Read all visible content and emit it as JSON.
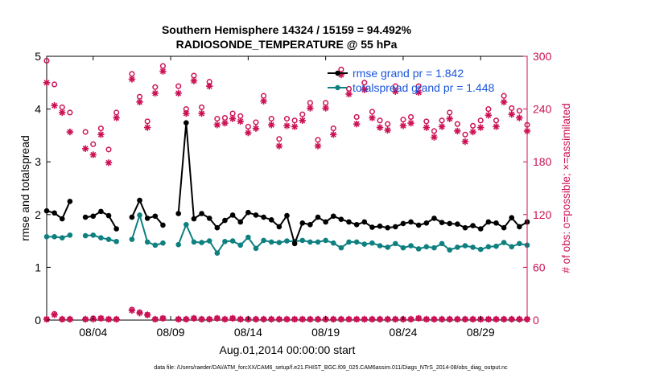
{
  "chart_data": {
    "type": "line",
    "title_line1": "Southern Hemisphere 14324 / 15159 = 94.492%",
    "title_line2": "RADIOSONDE_TEMPERATURE @ 55 hPa",
    "xlabel": "Aug.01,2014 00:00:00 start",
    "ylabel_left": "rmse and totalspread",
    "ylabel_right": "# of obs: o=possible; ×=assimilated",
    "footer": "data file: /Users/raeder/DAI/ATM_forcXX/CAM6_setup/f.e21.FHIST_BGC.f09_025.CAM6assim.011/Diags_NTrS_2014-08/obs_diag_output.nc",
    "x_tick_labels": [
      "08/04",
      "08/09",
      "08/14",
      "08/19",
      "08/24",
      "08/29"
    ],
    "x_tick_days": [
      4,
      9,
      14,
      19,
      24,
      29
    ],
    "xlim": [
      1,
      32
    ],
    "ylim_left": [
      0,
      5
    ],
    "y_ticks_left": [
      "0",
      "1",
      "2",
      "3",
      "4",
      "5"
    ],
    "ylim_right": [
      0,
      300
    ],
    "y_ticks_right": [
      "0",
      "60",
      "120",
      "180",
      "240",
      "300"
    ],
    "legend": {
      "rmse_label": "rmse grand pr = 1.842",
      "spread_label": "totalspread grand pr = 1.448"
    },
    "colors": {
      "rmse": "#000000",
      "spread": "#0e8080",
      "obs": "#cc1155",
      "legend_text": "#1a55dd"
    },
    "x": [
      1.0,
      1.5,
      2.0,
      2.5,
      3.0,
      3.5,
      4.0,
      4.5,
      5.0,
      5.5,
      6.0,
      6.5,
      7.0,
      7.5,
      8.0,
      8.5,
      9.0,
      9.5,
      10.0,
      10.5,
      11.0,
      11.5,
      12.0,
      12.5,
      13.0,
      13.5,
      14.0,
      14.5,
      15.0,
      15.5,
      16.0,
      16.5,
      17.0,
      17.5,
      18.0,
      18.5,
      19.0,
      19.5,
      20.0,
      20.5,
      21.0,
      21.5,
      22.0,
      22.5,
      23.0,
      23.5,
      24.0,
      24.5,
      25.0,
      25.5,
      26.0,
      26.5,
      27.0,
      27.5,
      28.0,
      28.5,
      29.0,
      29.5,
      30.0,
      30.5,
      31.0,
      31.5,
      32.0
    ],
    "rmse": [
      2.07,
      2.03,
      1.92,
      2.25,
      null,
      1.95,
      1.97,
      2.06,
      1.98,
      1.73,
      null,
      1.95,
      2.27,
      1.93,
      1.97,
      1.8,
      null,
      2.02,
      3.74,
      1.92,
      2.02,
      1.93,
      1.75,
      1.89,
      1.99,
      1.86,
      2.04,
      1.99,
      1.95,
      1.9,
      1.77,
      1.98,
      1.45,
      1.84,
      1.81,
      1.95,
      1.86,
      1.97,
      1.91,
      1.86,
      1.81,
      1.86,
      1.76,
      1.78,
      1.75,
      1.77,
      1.83,
      1.86,
      1.8,
      1.84,
      1.93,
      1.85,
      1.83,
      1.82,
      1.75,
      1.79,
      1.73,
      1.86,
      1.84,
      1.75,
      1.94,
      1.77,
      1.86
    ],
    "spread": [
      1.58,
      1.58,
      1.56,
      1.61,
      null,
      1.6,
      1.61,
      1.56,
      1.53,
      1.49,
      null,
      1.53,
      1.99,
      1.48,
      1.42,
      1.46,
      null,
      1.43,
      1.81,
      1.48,
      1.47,
      1.5,
      1.27,
      1.49,
      1.5,
      1.42,
      1.57,
      1.36,
      1.51,
      1.48,
      1.47,
      1.5,
      1.49,
      1.51,
      1.48,
      1.48,
      1.51,
      1.46,
      1.37,
      1.48,
      1.48,
      1.44,
      1.46,
      1.41,
      1.38,
      1.45,
      1.37,
      1.41,
      1.35,
      1.39,
      1.37,
      1.45,
      1.33,
      1.38,
      1.41,
      1.38,
      1.34,
      1.39,
      1.4,
      1.47,
      1.39,
      1.45,
      1.42
    ],
    "obs_possible": [
      295,
      268,
      242,
      236,
      null,
      214,
      200,
      218,
      194,
      236,
      null,
      280,
      254,
      226,
      265,
      289,
      null,
      266,
      240,
      278,
      242,
      271,
      229,
      230,
      235,
      232,
      220,
      225,
      255,
      229,
      206,
      229,
      227,
      234,
      247,
      205,
      247,
      218,
      285,
      263,
      231,
      270,
      237,
      227,
      223,
      266,
      228,
      231,
      266,
      226,
      215,
      227,
      236,
      223,
      211,
      221,
      227,
      240,
      227,
      255,
      241,
      238,
      222
    ],
    "obs_assimilated": [
      270,
      244,
      236,
      214,
      null,
      195,
      188,
      211,
      179,
      230,
      null,
      274,
      248,
      219,
      258,
      283,
      null,
      258,
      235,
      272,
      235,
      266,
      222,
      224,
      229,
      226,
      213,
      218,
      249,
      222,
      198,
      221,
      220,
      227,
      241,
      198,
      241,
      211,
      279,
      257,
      223,
      262,
      230,
      219,
      216,
      260,
      221,
      224,
      259,
      219,
      208,
      220,
      229,
      215,
      203,
      214,
      219,
      233,
      220,
      248,
      234,
      230,
      215
    ],
    "obs_bottom_possible": [
      1,
      7,
      1,
      1,
      null,
      1,
      2,
      2,
      1,
      1,
      null,
      12,
      9,
      6,
      1,
      2,
      null,
      1,
      1,
      2,
      1,
      1,
      2,
      1,
      2,
      1,
      1,
      1,
      1,
      1,
      1,
      1,
      1,
      1,
      1,
      1,
      1,
      1,
      1,
      1,
      1,
      1,
      1,
      1,
      1,
      1,
      1,
      1,
      2,
      1,
      1,
      1,
      1,
      1,
      1,
      1,
      1,
      1,
      1,
      1,
      1,
      1,
      1
    ],
    "obs_bottom_assimilated": [
      1,
      6,
      1,
      1,
      null,
      1,
      1,
      2,
      1,
      1,
      null,
      11,
      8,
      6,
      1,
      2,
      null,
      1,
      1,
      2,
      1,
      1,
      2,
      1,
      2,
      1,
      1,
      1,
      1,
      1,
      1,
      1,
      1,
      1,
      1,
      1,
      1,
      1,
      1,
      1,
      1,
      1,
      1,
      1,
      1,
      1,
      1,
      1,
      2,
      1,
      1,
      1,
      1,
      1,
      1,
      1,
      1,
      1,
      1,
      1,
      1,
      1,
      1
    ]
  }
}
